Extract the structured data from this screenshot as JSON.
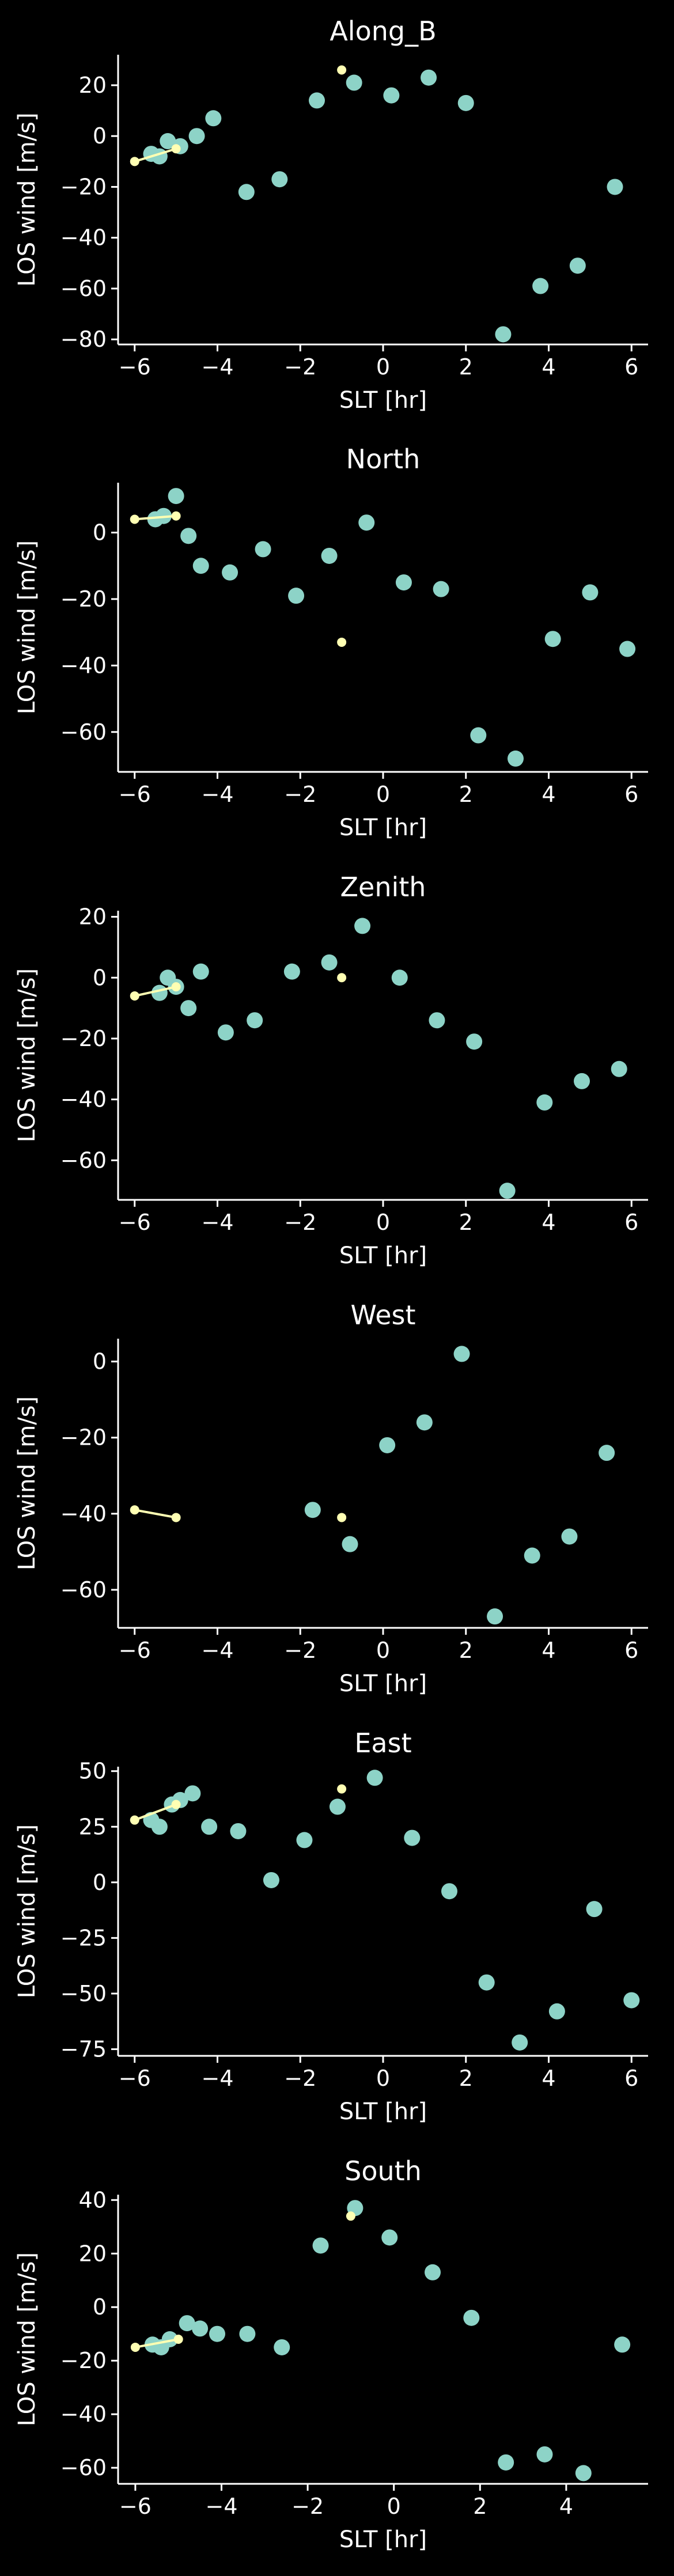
{
  "colors": {
    "background": "#000000",
    "axes": "#ffffff",
    "text": "#ffffff",
    "dots": "#8dd3c7",
    "line": "#ffffb3"
  },
  "chart_data": [
    {
      "type": "scatter",
      "title": "Along_B",
      "xlabel": "SLT [hr]",
      "ylabel": "LOS wind [m/s]",
      "xlim": [
        -6.4,
        6.4
      ],
      "ylim": [
        -82,
        32
      ],
      "xticks": [
        -6,
        -4,
        -2,
        0,
        2,
        4,
        6
      ],
      "yticks": [
        -80,
        -60,
        -40,
        -20,
        0,
        20
      ],
      "points": [
        {
          "x": -5.6,
          "y": -7
        },
        {
          "x": -5.4,
          "y": -8
        },
        {
          "x": -5.2,
          "y": -2
        },
        {
          "x": -4.9,
          "y": -4
        },
        {
          "x": -4.5,
          "y": 0
        },
        {
          "x": -4.1,
          "y": 7
        },
        {
          "x": -3.3,
          "y": -22
        },
        {
          "x": -2.5,
          "y": -17
        },
        {
          "x": -1.6,
          "y": 14
        },
        {
          "x": -0.7,
          "y": 21
        },
        {
          "x": 0.2,
          "y": 16
        },
        {
          "x": 1.1,
          "y": 23
        },
        {
          "x": 2.0,
          "y": 13
        },
        {
          "x": 2.9,
          "y": -78
        },
        {
          "x": 3.8,
          "y": -59
        },
        {
          "x": 4.7,
          "y": -51
        },
        {
          "x": 5.6,
          "y": -20
        }
      ],
      "line": [
        {
          "x": -6.0,
          "y": -10
        },
        {
          "x": -5.0,
          "y": -5
        }
      ],
      "marker": {
        "x": -1.0,
        "y": 26
      }
    },
    {
      "type": "scatter",
      "title": "North",
      "xlabel": "SLT [hr]",
      "ylabel": "LOS wind [m/s]",
      "xlim": [
        -6.4,
        6.4
      ],
      "ylim": [
        -72,
        15
      ],
      "xticks": [
        -6,
        -4,
        -2,
        0,
        2,
        4,
        6
      ],
      "yticks": [
        -60,
        -40,
        -20,
        0
      ],
      "points": [
        {
          "x": -5.5,
          "y": 4
        },
        {
          "x": -5.3,
          "y": 5
        },
        {
          "x": -5.0,
          "y": 11
        },
        {
          "x": -4.7,
          "y": -1
        },
        {
          "x": -4.4,
          "y": -10
        },
        {
          "x": -3.7,
          "y": -12
        },
        {
          "x": -2.9,
          "y": -5
        },
        {
          "x": -2.1,
          "y": -19
        },
        {
          "x": -1.3,
          "y": -7
        },
        {
          "x": -0.4,
          "y": 3
        },
        {
          "x": 0.5,
          "y": -15
        },
        {
          "x": 1.4,
          "y": -17
        },
        {
          "x": 2.3,
          "y": -61
        },
        {
          "x": 3.2,
          "y": -68
        },
        {
          "x": 4.1,
          "y": -32
        },
        {
          "x": 5.0,
          "y": -18
        },
        {
          "x": 5.9,
          "y": -35
        }
      ],
      "line": [
        {
          "x": -6.0,
          "y": 4
        },
        {
          "x": -5.0,
          "y": 5
        }
      ],
      "marker": {
        "x": -1.0,
        "y": -33
      }
    },
    {
      "type": "scatter",
      "title": "Zenith",
      "xlabel": "SLT [hr]",
      "ylabel": "LOS wind [m/s]",
      "xlim": [
        -6.4,
        6.4
      ],
      "ylim": [
        -73,
        22
      ],
      "xticks": [
        -6,
        -4,
        -2,
        0,
        2,
        4,
        6
      ],
      "yticks": [
        -60,
        -40,
        -20,
        0,
        20
      ],
      "points": [
        {
          "x": -5.4,
          "y": -5
        },
        {
          "x": -5.2,
          "y": 0
        },
        {
          "x": -5.0,
          "y": -3
        },
        {
          "x": -4.7,
          "y": -10
        },
        {
          "x": -4.4,
          "y": 2
        },
        {
          "x": -3.8,
          "y": -18
        },
        {
          "x": -3.1,
          "y": -14
        },
        {
          "x": -2.2,
          "y": 2
        },
        {
          "x": -1.3,
          "y": 5
        },
        {
          "x": -0.5,
          "y": 17
        },
        {
          "x": 0.4,
          "y": 0
        },
        {
          "x": 1.3,
          "y": -14
        },
        {
          "x": 2.2,
          "y": -21
        },
        {
          "x": 3.0,
          "y": -70
        },
        {
          "x": 3.9,
          "y": -41
        },
        {
          "x": 4.8,
          "y": -34
        },
        {
          "x": 5.7,
          "y": -30
        }
      ],
      "line": [
        {
          "x": -6.0,
          "y": -6
        },
        {
          "x": -5.0,
          "y": -3
        }
      ],
      "marker": {
        "x": -1.0,
        "y": 0
      }
    },
    {
      "type": "scatter",
      "title": "West",
      "xlabel": "SLT [hr]",
      "ylabel": "LOS wind [m/s]",
      "xlim": [
        -6.4,
        6.4
      ],
      "ylim": [
        -70,
        6
      ],
      "xticks": [
        -6,
        -4,
        -2,
        0,
        2,
        4,
        6
      ],
      "yticks": [
        -60,
        -40,
        -20,
        0
      ],
      "points": [
        {
          "x": -1.7,
          "y": -39
        },
        {
          "x": -0.8,
          "y": -48
        },
        {
          "x": 0.1,
          "y": -22
        },
        {
          "x": 1.0,
          "y": -16
        },
        {
          "x": 1.9,
          "y": 2
        },
        {
          "x": 2.7,
          "y": -67
        },
        {
          "x": 3.6,
          "y": -51
        },
        {
          "x": 4.5,
          "y": -46
        },
        {
          "x": 5.4,
          "y": -24
        }
      ],
      "line": [
        {
          "x": -6.0,
          "y": -39
        },
        {
          "x": -5.0,
          "y": -41
        }
      ],
      "marker": {
        "x": -1.0,
        "y": -41
      }
    },
    {
      "type": "scatter",
      "title": "East",
      "xlabel": "SLT [hr]",
      "ylabel": "LOS wind [m/s]",
      "xlim": [
        -6.4,
        6.4
      ],
      "ylim": [
        -78,
        52
      ],
      "xticks": [
        -6,
        -4,
        -2,
        0,
        2,
        4,
        6
      ],
      "yticks": [
        -75,
        -50,
        -25,
        0,
        25,
        50
      ],
      "points": [
        {
          "x": -5.6,
          "y": 28
        },
        {
          "x": -5.4,
          "y": 25
        },
        {
          "x": -5.1,
          "y": 35
        },
        {
          "x": -4.9,
          "y": 37
        },
        {
          "x": -4.6,
          "y": 40
        },
        {
          "x": -4.2,
          "y": 25
        },
        {
          "x": -3.5,
          "y": 23
        },
        {
          "x": -2.7,
          "y": 1
        },
        {
          "x": -1.9,
          "y": 19
        },
        {
          "x": -1.1,
          "y": 34
        },
        {
          "x": -0.2,
          "y": 47
        },
        {
          "x": 0.7,
          "y": 20
        },
        {
          "x": 1.6,
          "y": -4
        },
        {
          "x": 2.5,
          "y": -45
        },
        {
          "x": 3.3,
          "y": -72
        },
        {
          "x": 4.2,
          "y": -58
        },
        {
          "x": 5.1,
          "y": -12
        },
        {
          "x": 6.0,
          "y": -53
        }
      ],
      "line": [
        {
          "x": -6.0,
          "y": 28
        },
        {
          "x": -5.0,
          "y": 35
        }
      ],
      "marker": {
        "x": -1.0,
        "y": 42
      }
    },
    {
      "type": "scatter",
      "title": "South",
      "xlabel": "SLT [hr]",
      "ylabel": "LOS wind [m/s]",
      "xlim": [
        -6.4,
        5.9
      ],
      "ylim": [
        -66,
        42
      ],
      "xticks": [
        -6,
        -4,
        -2,
        0,
        2,
        4
      ],
      "yticks": [
        -60,
        -40,
        -20,
        0,
        20,
        40
      ],
      "points": [
        {
          "x": -5.6,
          "y": -14
        },
        {
          "x": -5.4,
          "y": -15
        },
        {
          "x": -5.2,
          "y": -12
        },
        {
          "x": -4.8,
          "y": -6
        },
        {
          "x": -4.5,
          "y": -8
        },
        {
          "x": -4.1,
          "y": -10
        },
        {
          "x": -3.4,
          "y": -10
        },
        {
          "x": -2.6,
          "y": -15
        },
        {
          "x": -1.7,
          "y": 23
        },
        {
          "x": -0.9,
          "y": 37
        },
        {
          "x": -0.1,
          "y": 26
        },
        {
          "x": 0.9,
          "y": 13
        },
        {
          "x": 1.8,
          "y": -4
        },
        {
          "x": 2.6,
          "y": -58
        },
        {
          "x": 3.5,
          "y": -55
        },
        {
          "x": 4.4,
          "y": -62
        },
        {
          "x": 5.3,
          "y": -14
        }
      ],
      "line": [
        {
          "x": -6.0,
          "y": -15
        },
        {
          "x": -5.0,
          "y": -12
        }
      ],
      "marker": {
        "x": -1.0,
        "y": 34
      }
    }
  ]
}
